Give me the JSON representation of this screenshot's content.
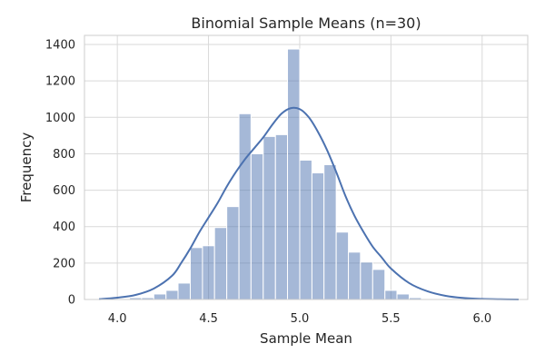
{
  "chart_data": {
    "type": "bar",
    "title": "Binomial Sample Means (n=30)",
    "xlabel": "Sample Mean",
    "ylabel": "Frequency",
    "xlim": [
      3.82,
      6.25
    ],
    "ylim": [
      0,
      1450
    ],
    "grid": true,
    "bar_color": "#4c72b0",
    "bar_alpha": 0.5,
    "line_color": "#4c72b0",
    "xticks": [
      "4.0",
      "4.5",
      "5.0",
      "5.5",
      "6.0"
    ],
    "yticks": [
      "0",
      "200",
      "400",
      "600",
      "800",
      "1000",
      "1200",
      "1400"
    ],
    "histogram": {
      "bins": [
        {
          "x0": 3.933,
          "x1": 4.0,
          "count": 0
        },
        {
          "x0": 4.0,
          "x1": 4.067,
          "count": 0
        },
        {
          "x0": 4.067,
          "x1": 4.133,
          "count": 10
        },
        {
          "x0": 4.133,
          "x1": 4.2,
          "count": 10
        },
        {
          "x0": 4.2,
          "x1": 4.267,
          "count": 30
        },
        {
          "x0": 4.267,
          "x1": 4.333,
          "count": 50
        },
        {
          "x0": 4.333,
          "x1": 4.4,
          "count": 90
        },
        {
          "x0": 4.4,
          "x1": 4.467,
          "count": 285
        },
        {
          "x0": 4.467,
          "x1": 4.533,
          "count": 295
        },
        {
          "x0": 4.533,
          "x1": 4.6,
          "count": 395
        },
        {
          "x0": 4.6,
          "x1": 4.667,
          "count": 510
        },
        {
          "x0": 4.667,
          "x1": 4.733,
          "count": 1020
        },
        {
          "x0": 4.733,
          "x1": 4.8,
          "count": 800
        },
        {
          "x0": 4.8,
          "x1": 4.867,
          "count": 895
        },
        {
          "x0": 4.867,
          "x1": 4.933,
          "count": 905
        },
        {
          "x0": 4.933,
          "x1": 5.0,
          "count": 1375
        },
        {
          "x0": 5.0,
          "x1": 5.067,
          "count": 765
        },
        {
          "x0": 5.067,
          "x1": 5.133,
          "count": 695
        },
        {
          "x0": 5.133,
          "x1": 5.2,
          "count": 740
        },
        {
          "x0": 5.2,
          "x1": 5.267,
          "count": 370
        },
        {
          "x0": 5.267,
          "x1": 5.333,
          "count": 260
        },
        {
          "x0": 5.333,
          "x1": 5.4,
          "count": 205
        },
        {
          "x0": 5.4,
          "x1": 5.467,
          "count": 165
        },
        {
          "x0": 5.467,
          "x1": 5.533,
          "count": 50
        },
        {
          "x0": 5.533,
          "x1": 5.6,
          "count": 30
        },
        {
          "x0": 5.6,
          "x1": 5.667,
          "count": 10
        },
        {
          "x0": 5.667,
          "x1": 5.733,
          "count": 5
        }
      ]
    },
    "kde": {
      "x": [
        3.9,
        4.0,
        4.1,
        4.2,
        4.3,
        4.35,
        4.4,
        4.45,
        4.5,
        4.55,
        4.6,
        4.65,
        4.7,
        4.75,
        4.8,
        4.85,
        4.9,
        4.95,
        5.0,
        5.05,
        5.1,
        5.15,
        5.2,
        5.25,
        5.3,
        5.35,
        5.4,
        5.45,
        5.5,
        5.6,
        5.7,
        5.8,
        5.9,
        6.0,
        6.1,
        6.2
      ],
      "y": [
        2,
        10,
        25,
        60,
        130,
        200,
        280,
        370,
        450,
        530,
        620,
        700,
        770,
        830,
        890,
        960,
        1020,
        1050,
        1045,
        1000,
        920,
        820,
        700,
        570,
        460,
        370,
        290,
        230,
        170,
        90,
        45,
        20,
        8,
        3,
        1,
        0
      ]
    }
  }
}
